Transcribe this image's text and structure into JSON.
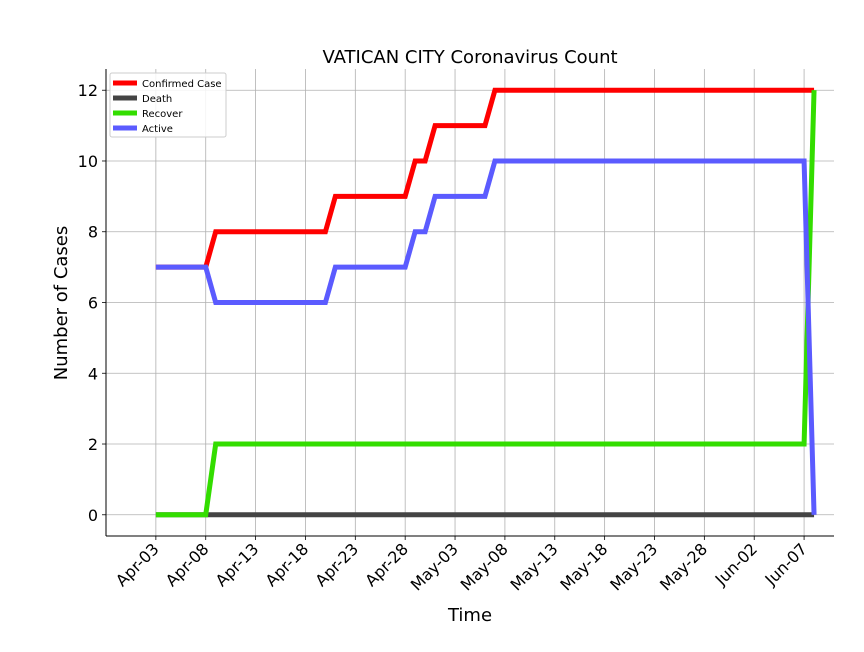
{
  "chart_data": {
    "type": "line",
    "title": "VATICAN CITY Coronavirus Count",
    "xlabel": "Time",
    "ylabel": "Number of Cases",
    "x_tick_labels": [
      "Apr-03",
      "Apr-08",
      "Apr-13",
      "Apr-18",
      "Apr-23",
      "Apr-28",
      "May-03",
      "May-08",
      "May-13",
      "May-18",
      "May-23",
      "May-28",
      "Jun-02",
      "Jun-07"
    ],
    "y_ticks": [
      0,
      2,
      4,
      6,
      8,
      10,
      12
    ],
    "xlim": [
      "2020-03-29",
      "2020-06-10"
    ],
    "ylim": [
      -0.6,
      12.6
    ],
    "grid": true,
    "legend_position": "top-left",
    "step_dates": [
      "2020-04-03",
      "2020-04-09",
      "2020-04-20",
      "2020-04-21",
      "2020-04-28",
      "2020-04-29",
      "2020-04-30",
      "2020-05-01",
      "2020-05-06",
      "2020-05-07",
      "2020-06-07",
      "2020-06-08"
    ],
    "series": [
      {
        "name": "Confirmed Case",
        "color": "#ff0000",
        "values": [
          7,
          8,
          8,
          9,
          9,
          10,
          10,
          11,
          11,
          12,
          12,
          12
        ]
      },
      {
        "name": "Death",
        "color": "#444444",
        "values": [
          0,
          0,
          0,
          0,
          0,
          0,
          0,
          0,
          0,
          0,
          0,
          0
        ]
      },
      {
        "name": "Recover",
        "color": "#33dd00",
        "values": [
          0,
          2,
          2,
          2,
          2,
          2,
          2,
          2,
          2,
          2,
          2,
          12
        ]
      },
      {
        "name": "Active",
        "color": "#5b5bff",
        "values": [
          7,
          6,
          6,
          7,
          7,
          8,
          8,
          9,
          9,
          10,
          10,
          0
        ]
      }
    ]
  }
}
